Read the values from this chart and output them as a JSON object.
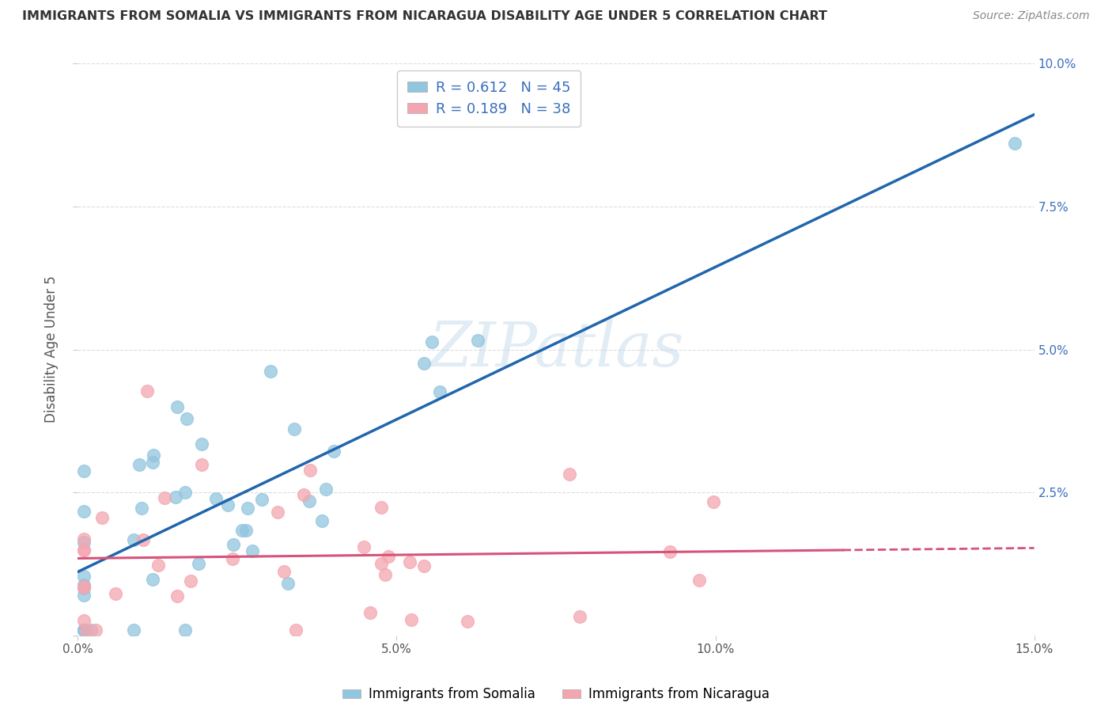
{
  "title": "IMMIGRANTS FROM SOMALIA VS IMMIGRANTS FROM NICARAGUA DISABILITY AGE UNDER 5 CORRELATION CHART",
  "source": "Source: ZipAtlas.com",
  "ylabel": "Disability Age Under 5",
  "legend_label1": "Immigrants from Somalia",
  "legend_label2": "Immigrants from Nicaragua",
  "R1": 0.612,
  "N1": 45,
  "R2": 0.189,
  "N2": 38,
  "xlim": [
    0,
    0.15
  ],
  "ylim": [
    0,
    0.1
  ],
  "color_somalia": "#92c5de",
  "color_nicaragua": "#f4a6b0",
  "regression_color_somalia": "#2166ac",
  "regression_color_nicaragua": "#d6537a",
  "watermark": "ZIPatlas",
  "background_color": "#ffffff",
  "grid_color": "#dddddd",
  "title_color": "#333333",
  "source_color": "#888888",
  "tick_color": "#3a6fbd"
}
